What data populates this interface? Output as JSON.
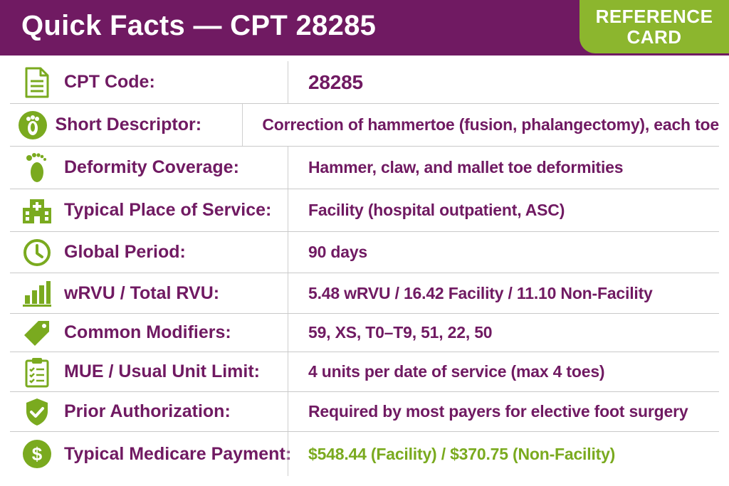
{
  "header": {
    "title": "Quick Facts — CPT 28285",
    "badge_line1": "REFERENCE",
    "badge_line2": "CARD"
  },
  "colors": {
    "primary": "#701a62",
    "accent": "#8cb62e",
    "payment_text": "#7aaa1f"
  },
  "rows": [
    {
      "icon": "document-icon",
      "label": "CPT Code:",
      "value": "28285"
    },
    {
      "icon": "foot-bone-icon",
      "label": "Short Descriptor:",
      "value": "Correction of hammertoe (fusion, phalangectomy), each toe"
    },
    {
      "icon": "footprint-icon",
      "label": "Deformity Coverage:",
      "value": "Hammer, claw, and mallet toe deformities"
    },
    {
      "icon": "hospital-icon",
      "label": "Typical Place of Service:",
      "value": "Facility (hospital outpatient, ASC)"
    },
    {
      "icon": "clock-icon",
      "label": "Global Period:",
      "value": "90 days"
    },
    {
      "icon": "bar-chart-icon",
      "label": "wRVU / Total RVU:",
      "value": "5.48 wRVU / 16.42 Facility / 11.10 Non-Facility"
    },
    {
      "icon": "tag-icon",
      "label": "Common Modifiers:",
      "value": "59, XS, T0–T9, 51, 22, 50"
    },
    {
      "icon": "clipboard-checklist-icon",
      "label": "MUE / Usual Unit Limit:",
      "value": "4 units per date of service (max 4 toes)"
    },
    {
      "icon": "shield-check-icon",
      "label": "Prior Authorization:",
      "value": "Required by most payers for elective foot surgery"
    },
    {
      "icon": "dollar-icon",
      "label": "Typical Medicare Payment:",
      "value": "$548.44 (Facility) / $370.75 (Non-Facility)"
    }
  ]
}
